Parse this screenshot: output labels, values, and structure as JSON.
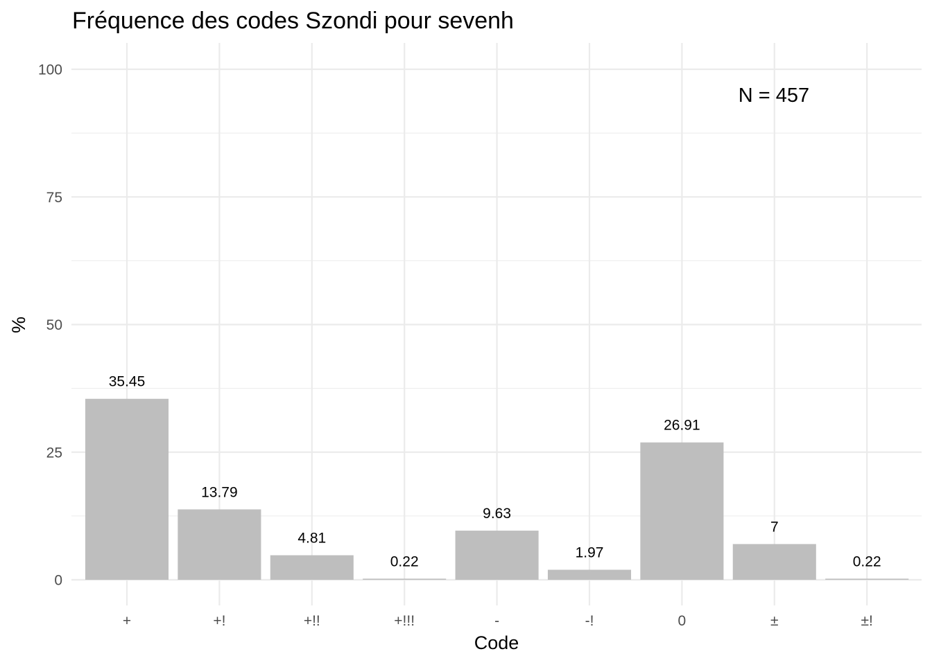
{
  "chart_data": {
    "type": "bar",
    "title": "Fréquence des codes Szondi pour sevenh",
    "xlabel": "Code",
    "ylabel": "%",
    "categories": [
      "+",
      "+!",
      "+!!",
      "+!!!",
      "-",
      "-!",
      "0",
      "±",
      "±!"
    ],
    "values": [
      35.45,
      13.79,
      4.81,
      0.22,
      9.63,
      1.97,
      26.91,
      7,
      0.22
    ],
    "data_labels": [
      "35.45",
      "13.79",
      "4.81",
      "0.22",
      "9.63",
      "1.97",
      "26.91",
      "7",
      "0.22"
    ],
    "ylim": [
      0,
      100
    ],
    "yticks": [
      0,
      25,
      50,
      75,
      100
    ],
    "ytick_labels": [
      "0",
      "25",
      "50",
      "75",
      "100"
    ],
    "annotation": "N = 457",
    "bar_color": "#bebebe",
    "grid": true,
    "grid_color": "#ebebeb",
    "legend": "none"
  }
}
